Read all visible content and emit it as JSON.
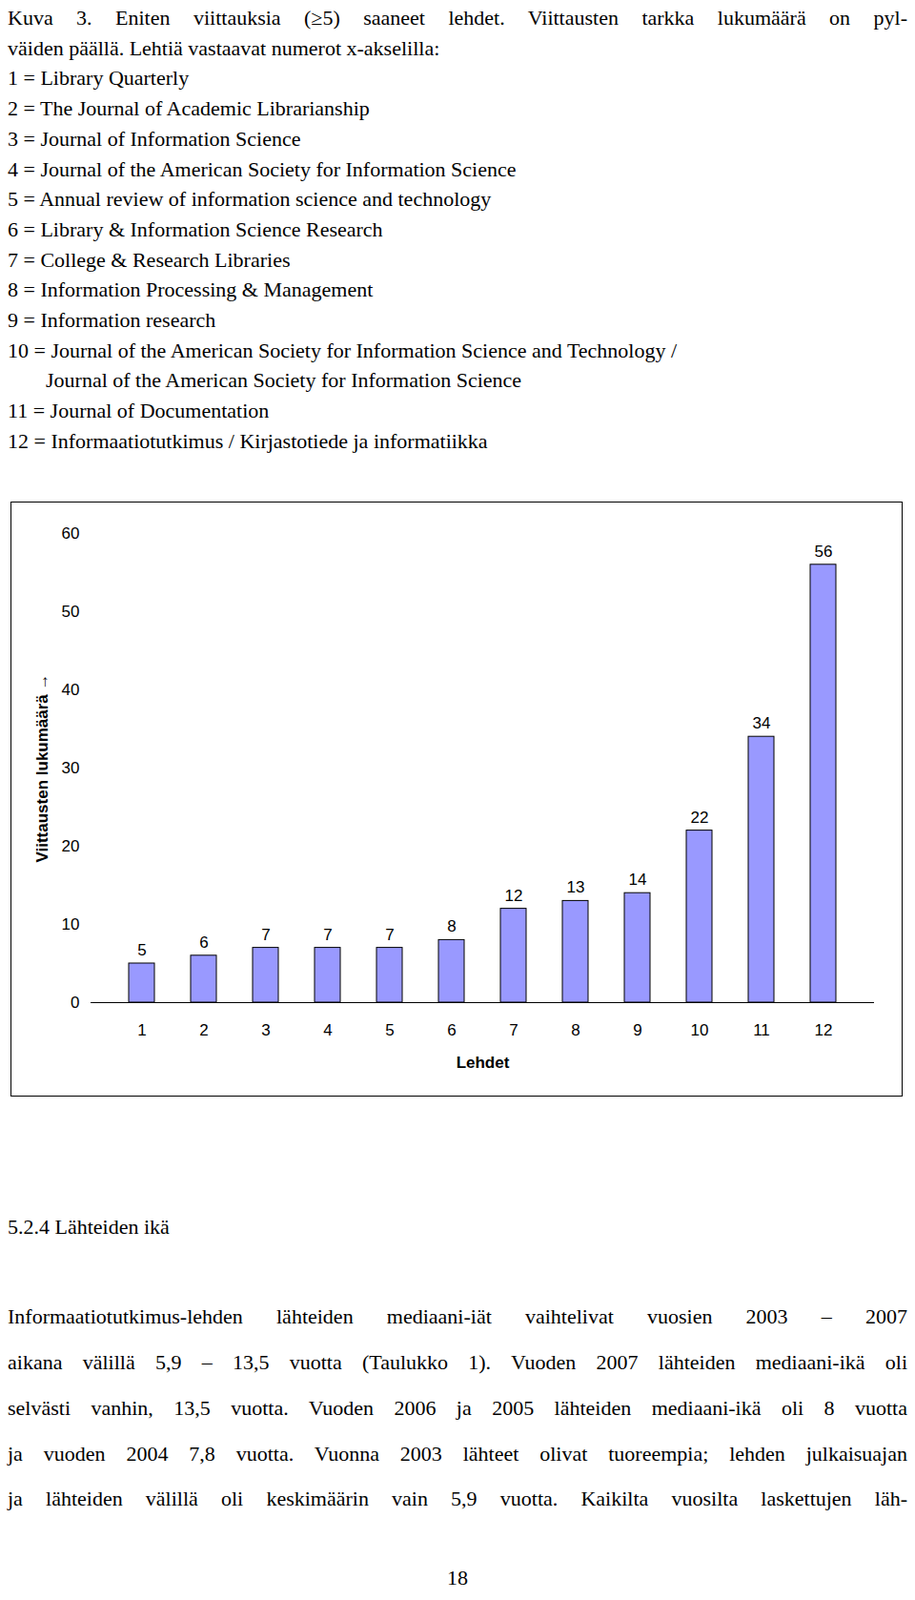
{
  "caption_lines": [
    "Kuva 3. Eniten viittauksia (≥5) saaneet lehdet. Viittausten tarkka lukumäärä on pyl-",
    "väiden päällä. Lehtiä vastaavat numerot x-akselilla:"
  ],
  "journal_key": [
    "1 = Library Quarterly",
    "2 = The Journal of Academic Librarianship",
    "3 = Journal of Information Science",
    "4 = Journal of the American Society for Information Science",
    "5 = Annual review of information science and technology",
    "6 = Library & Information Science Research",
    "7 = College & Research Libraries",
    "8 = Information Processing & Management",
    "9 = Information research",
    [
      "10 = Journal of the American Society for Information Science and Technology /",
      "Journal of the American Society for Information Science"
    ],
    "11 = Journal of Documentation",
    "12 = Informaatiotutkimus / Kirjastotiede ja informatiikka"
  ],
  "chart_data": {
    "type": "bar",
    "x_label": "Lehdet",
    "y_label": "Viittausten lukumäärä",
    "categories": [
      "1",
      "2",
      "3",
      "4",
      "5",
      "6",
      "7",
      "8",
      "9",
      "10",
      "11",
      "12"
    ],
    "values": [
      5,
      6,
      7,
      7,
      7,
      8,
      12,
      13,
      14,
      22,
      34,
      56
    ],
    "color": "#9999ff",
    "ylim": [
      0,
      60
    ],
    "yticks": [
      0,
      10,
      20,
      30,
      40,
      50,
      60
    ],
    "grid": false,
    "data_labels": true
  },
  "heading": "5.2.4 Lähteiden ikä",
  "body_lines": [
    "Informaatiotutkimus-lehden lähteiden mediaani-iät vaihtelivat vuosien 2003 – 2007",
    "aikana välillä 5,9 – 13,5 vuotta (Taulukko 1). Vuoden 2007 lähteiden mediaani-ikä oli",
    "selvästi vanhin, 13,5 vuotta. Vuoden 2006 ja 2005 lähteiden mediaani-ikä oli 8 vuotta",
    "ja vuoden 2004 7,8 vuotta. Vuonna 2003 lähteet olivat tuoreempia; lehden julkaisuajan",
    "ja lähteiden välillä oli keskimäärin vain 5,9 vuotta. Kaikilta vuosilta laskettujen läh-"
  ],
  "page_number": "18"
}
